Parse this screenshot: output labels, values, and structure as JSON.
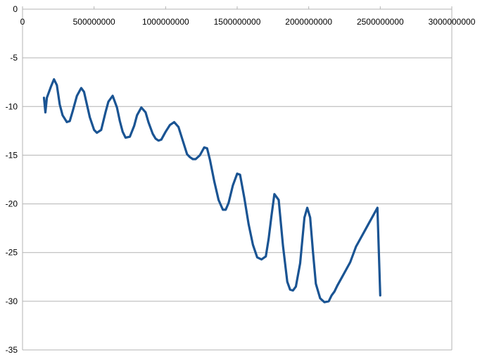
{
  "chart_data": {
    "type": "line",
    "title": "",
    "xlabel": "",
    "ylabel": "",
    "xlim": [
      0,
      3000000000
    ],
    "ylim": [
      -35,
      0
    ],
    "grid": true,
    "legend": "none",
    "x_ticks": [
      0,
      500000000,
      1000000000,
      1500000000,
      2000000000,
      2500000000,
      3000000000
    ],
    "x_tick_labels": [
      "0",
      "500000000",
      "1000000000",
      "1500000000",
      "2000000000",
      "2500000000",
      "3000000000"
    ],
    "y_ticks": [
      0,
      -5,
      -10,
      -15,
      -20,
      -25,
      -30,
      -35
    ],
    "y_tick_labels": [
      "0",
      "-5",
      "-10",
      "-15",
      "-20",
      "-25",
      "-30",
      "-35"
    ],
    "colors": {
      "series": "#1a5493",
      "grid": "#b3b3b3",
      "text": "#000000"
    },
    "series": [
      {
        "x": [
          150000000,
          160000000,
          170000000,
          200000000,
          220000000,
          240000000,
          260000000,
          280000000,
          310000000,
          330000000,
          350000000,
          380000000,
          410000000,
          430000000,
          450000000,
          470000000,
          500000000,
          520000000,
          550000000,
          580000000,
          600000000,
          630000000,
          660000000,
          680000000,
          700000000,
          720000000,
          750000000,
          780000000,
          800000000,
          830000000,
          860000000,
          880000000,
          910000000,
          930000000,
          950000000,
          970000000,
          1000000000,
          1030000000,
          1060000000,
          1090000000,
          1120000000,
          1150000000,
          1170000000,
          1190000000,
          1210000000,
          1240000000,
          1270000000,
          1290000000,
          1310000000,
          1340000000,
          1370000000,
          1400000000,
          1420000000,
          1440000000,
          1470000000,
          1500000000,
          1520000000,
          1550000000,
          1580000000,
          1610000000,
          1640000000,
          1670000000,
          1700000000,
          1720000000,
          1740000000,
          1760000000,
          1790000000,
          1820000000,
          1850000000,
          1870000000,
          1890000000,
          1910000000,
          1940000000,
          1970000000,
          1990000000,
          2010000000,
          2030000000,
          2050000000,
          2080000000,
          2110000000,
          2140000000,
          2160000000,
          2180000000,
          2200000000,
          2230000000,
          2260000000,
          2290000000,
          2310000000,
          2330000000,
          2360000000,
          2390000000,
          2420000000,
          2450000000,
          2480000000,
          2500000000
        ],
        "y": [
          -9.1,
          -10.6,
          -9.1,
          -7.9,
          -7.2,
          -7.8,
          -9.8,
          -10.9,
          -11.6,
          -11.5,
          -10.5,
          -8.9,
          -8.1,
          -8.5,
          -9.8,
          -11.1,
          -12.4,
          -12.7,
          -12.4,
          -10.6,
          -9.5,
          -8.9,
          -10.1,
          -11.5,
          -12.6,
          -13.2,
          -13.1,
          -12.0,
          -10.9,
          -10.1,
          -10.6,
          -11.6,
          -12.8,
          -13.3,
          -13.5,
          -13.4,
          -12.6,
          -11.9,
          -11.6,
          -12.1,
          -13.5,
          -14.9,
          -15.2,
          -15.4,
          -15.4,
          -15.0,
          -14.2,
          -14.3,
          -15.5,
          -17.7,
          -19.6,
          -20.6,
          -20.6,
          -19.9,
          -18.1,
          -16.9,
          -17.0,
          -19.4,
          -22.1,
          -24.2,
          -25.5,
          -25.7,
          -25.4,
          -23.6,
          -21.2,
          -19.0,
          -19.6,
          -24.3,
          -28.0,
          -28.8,
          -28.9,
          -28.5,
          -26.1,
          -21.4,
          -20.4,
          -21.4,
          -25.0,
          -28.2,
          -29.7,
          -30.1,
          -30.0,
          -29.4,
          -29.0,
          -28.4,
          -27.6,
          -26.8,
          -26.0,
          -25.2,
          -24.4,
          -23.6,
          -22.8,
          -22.0,
          -21.2,
          -20.4,
          -29.4
        ]
      }
    ]
  }
}
